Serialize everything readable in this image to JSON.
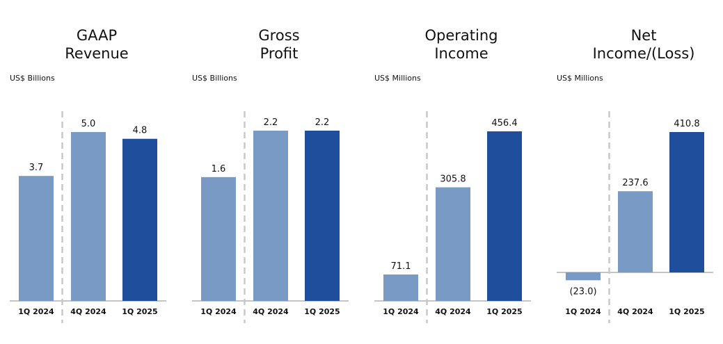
{
  "colors": {
    "light": "#7A9AC6",
    "dark": "#1F4F9C",
    "axis": "#888888",
    "divider": "#C8C8C8"
  },
  "chart_data": [
    {
      "type": "bar",
      "title_lines": [
        "GAAP",
        "Revenue"
      ],
      "unit": "US$ Billions",
      "categories": [
        "1Q 2024",
        "4Q 2024",
        "1Q 2025"
      ],
      "values": [
        3.7,
        5.0,
        4.8
      ],
      "labels": [
        "3.7",
        "5.0",
        "4.8"
      ],
      "colors": [
        "#7A9AC6",
        "#7A9AC6",
        "#1F4F9C"
      ]
    },
    {
      "type": "bar",
      "title_lines": [
        "Gross",
        "Profit"
      ],
      "unit": "US$ Billions",
      "categories": [
        "1Q 2024",
        "4Q 2024",
        "1Q 2025"
      ],
      "values": [
        1.6,
        2.2,
        2.2
      ],
      "labels": [
        "1.6",
        "2.2",
        "2.2"
      ],
      "colors": [
        "#7A9AC6",
        "#7A9AC6",
        "#1F4F9C"
      ]
    },
    {
      "type": "bar",
      "title_lines": [
        "Operating",
        "Income"
      ],
      "unit": "US$ Millions",
      "categories": [
        "1Q 2024",
        "4Q 2024",
        "1Q 2025"
      ],
      "values": [
        71.1,
        305.8,
        456.4
      ],
      "labels": [
        "71.1",
        "305.8",
        "456.4"
      ],
      "colors": [
        "#7A9AC6",
        "#7A9AC6",
        "#1F4F9C"
      ]
    },
    {
      "type": "bar",
      "title_lines": [
        "Net",
        "Income/(Loss)"
      ],
      "unit": "US$ Millions",
      "categories": [
        "1Q 2024",
        "4Q 2024",
        "1Q 2025"
      ],
      "values": [
        -23.0,
        237.6,
        410.8
      ],
      "labels": [
        "(23.0)",
        "237.6",
        "410.8"
      ],
      "colors": [
        "#7A9AC6",
        "#7A9AC6",
        "#1F4F9C"
      ]
    }
  ]
}
